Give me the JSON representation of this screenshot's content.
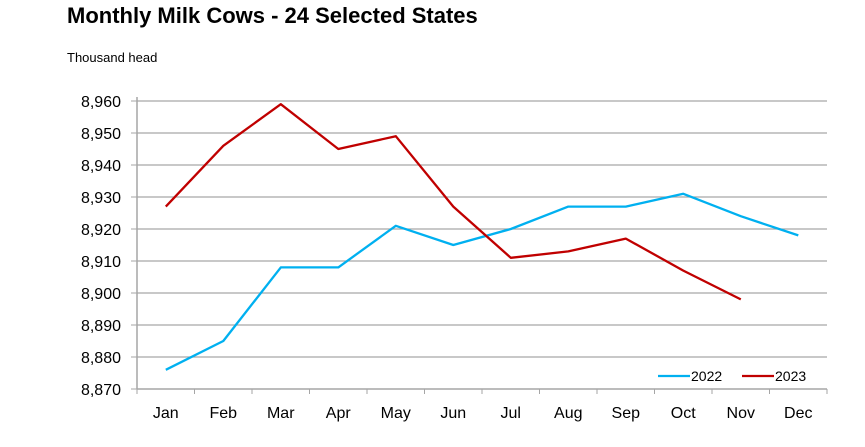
{
  "chart_data": {
    "type": "line",
    "title": "Monthly Milk Cows - 24 Selected States",
    "ylabel": "Thousand head",
    "xlabel": "",
    "categories": [
      "Jan",
      "Feb",
      "Mar",
      "Apr",
      "May",
      "Jun",
      "Jul",
      "Aug",
      "Sep",
      "Oct",
      "Nov",
      "Dec"
    ],
    "yticks": [
      "8,870",
      "8,880",
      "8,890",
      "8,900",
      "8,910",
      "8,920",
      "8,930",
      "8,940",
      "8,950",
      "8,960"
    ],
    "ylim": [
      8870,
      8960
    ],
    "grid": true,
    "legend_position": "bottom-right inside",
    "series": [
      {
        "name": "2022",
        "color": "#00b0f0",
        "values": [
          8876,
          8885,
          8908,
          8908,
          8921,
          8915,
          8920,
          8927,
          8927,
          8931,
          8924,
          8918
        ]
      },
      {
        "name": "2023",
        "color": "#c00000",
        "values": [
          8927,
          8946,
          8959,
          8945,
          8949,
          8927,
          8911,
          8913,
          8917,
          8907,
          8898,
          null
        ]
      }
    ]
  }
}
